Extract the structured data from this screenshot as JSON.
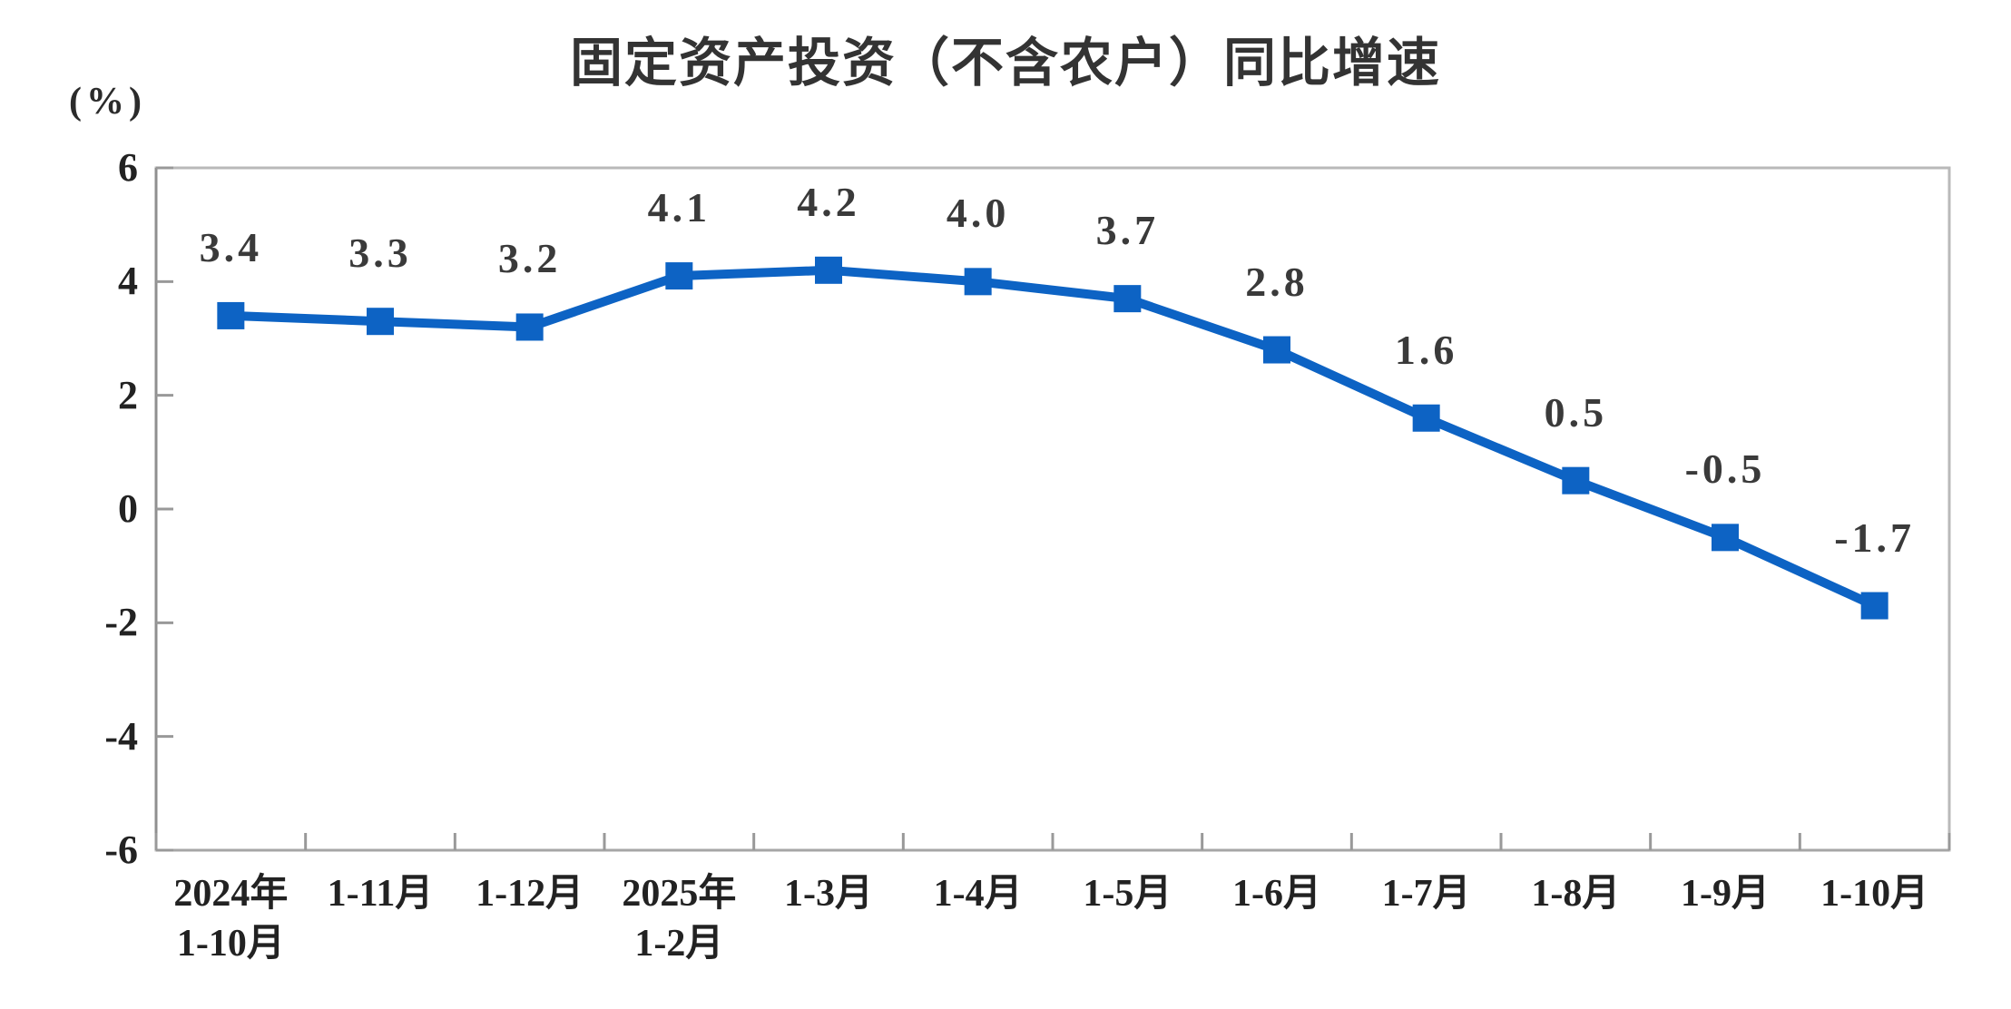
{
  "title": "固定资产投资（不含农户）同比增速",
  "chart_data": {
    "type": "line",
    "title": "固定资产投资（不含农户）同比增速",
    "unit": "(%)",
    "categories": [
      "2024年\n1-10月",
      "1-11月",
      "1-12月",
      "2025年\n1-2月",
      "1-3月",
      "1-4月",
      "1-5月",
      "1-6月",
      "1-7月",
      "1-8月",
      "1-9月",
      "1-10月"
    ],
    "values": [
      3.4,
      3.3,
      3.2,
      4.1,
      4.2,
      4.0,
      3.7,
      2.8,
      1.6,
      0.5,
      -0.5,
      -1.7
    ],
    "point_labels": [
      "3.4",
      "3.3",
      "3.2",
      "4.1",
      "4.2",
      "4.0",
      "3.7",
      "2.8",
      "1.6",
      "0.5",
      "-0.5",
      "-1.7"
    ],
    "ylim": [
      -6,
      6
    ],
    "yticks": [
      6,
      4,
      2,
      0,
      -2,
      -4,
      -6
    ],
    "grid": false,
    "legend": null,
    "colors": {
      "line": "#0d63c4",
      "marker": "#0d63c4",
      "frame": "#b9b9b9",
      "axis": "#8f8f8f",
      "tick": "#999999",
      "text": "#222222",
      "label_text": "#3a3a3a",
      "title_text": "#333333"
    }
  }
}
